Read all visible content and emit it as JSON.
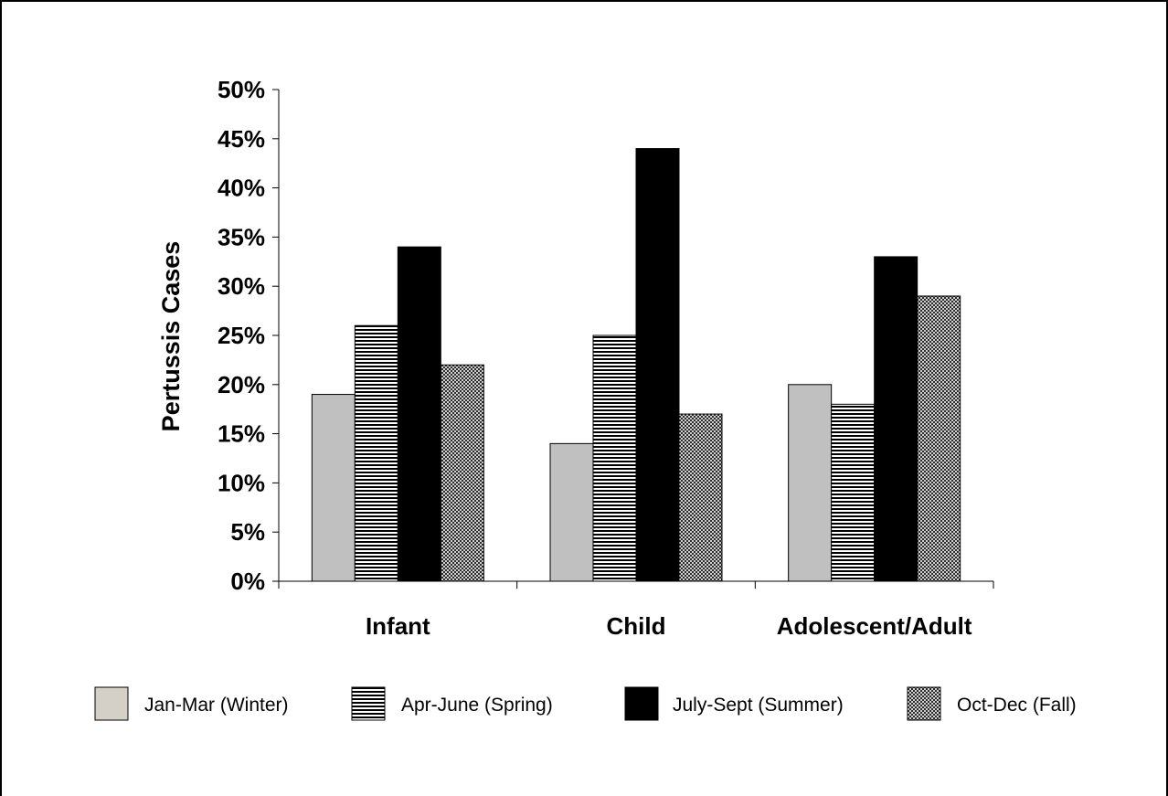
{
  "chart_data": {
    "type": "bar",
    "title": "",
    "xlabel": "",
    "ylabel": "Pertussis Cases",
    "ylim": [
      0,
      50
    ],
    "y_ticks": [
      "0%",
      "5%",
      "10%",
      "15%",
      "20%",
      "25%",
      "30%",
      "35%",
      "40%",
      "45%",
      "50%"
    ],
    "categories": [
      "Infant",
      "Child",
      "Adolescent/Adult"
    ],
    "series": [
      {
        "name": "Jan-Mar (Winter)",
        "values": [
          19,
          14,
          20
        ],
        "fill": "#c0c0c0",
        "pattern": "solid"
      },
      {
        "name": "Apr-June (Spring)",
        "values": [
          26,
          25,
          18
        ],
        "fill": "#000000",
        "pattern": "horizontal-lines"
      },
      {
        "name": "July-Sept (Summer)",
        "values": [
          34,
          44,
          33
        ],
        "fill": "#000000",
        "pattern": "solid"
      },
      {
        "name": "Oct-Dec (Fall)",
        "values": [
          22,
          17,
          29
        ],
        "fill": "#000000",
        "pattern": "crosshatch"
      }
    ],
    "grid": false,
    "legend_position": "bottom"
  }
}
